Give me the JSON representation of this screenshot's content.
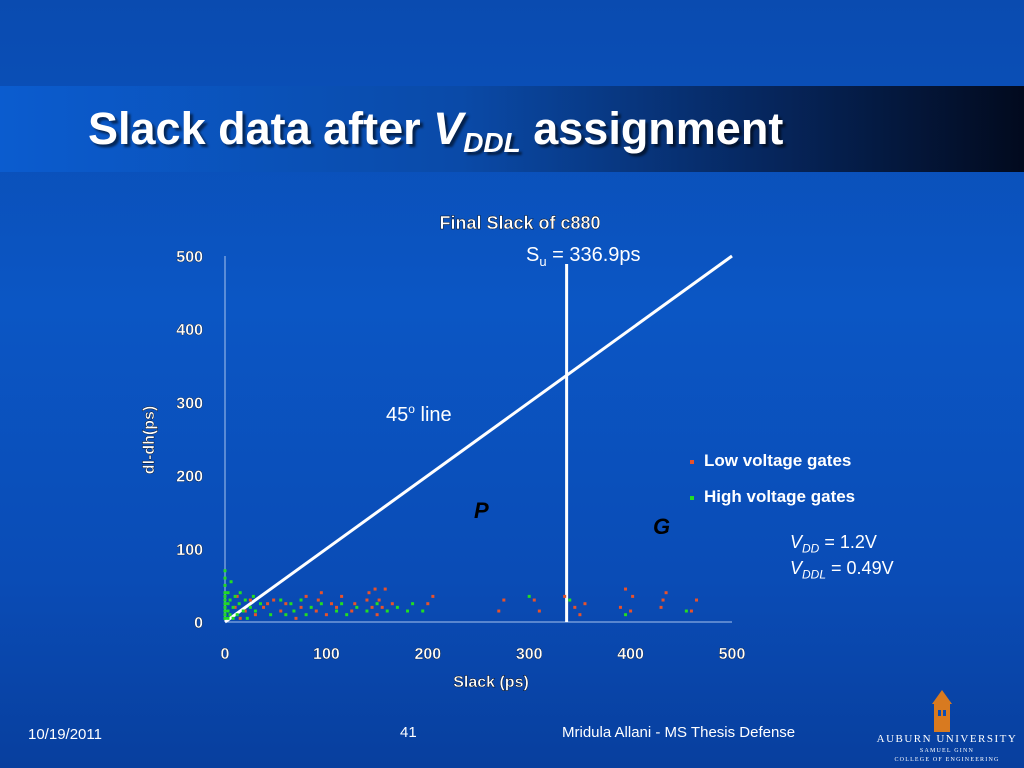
{
  "slide": {
    "title_prefix": "Slack data after ",
    "title_v": "V",
    "title_sub": "DDL",
    "title_suffix": " assignment"
  },
  "footer": {
    "date": "10/19/2011",
    "page": "41",
    "author": "Mridula Allani - MS Thesis Defense"
  },
  "logo": {
    "line1": "AUBURN UNIVERSITY",
    "line2": "SAMUEL GINN",
    "line3": "COLLEGE OF ENGINEERING"
  },
  "colors": {
    "low_voltage": "#e8522a",
    "high_voltage": "#22dd22",
    "line": "#ffffff"
  },
  "annotations": {
    "su_label": "S",
    "su_sub": "u",
    "su_value": " = 336.9ps",
    "line45": "45",
    "line45_sup": "o",
    "line45_suffix": " line",
    "region_p": "P",
    "region_g": "G",
    "vdd_v": "V",
    "vdd_sub": "DD",
    "vdd_value": " = 1.2V",
    "vddl_v": "V",
    "vddl_sub": "DDL",
    "vddl_value": " = 0.49V"
  },
  "chart_data": {
    "type": "scatter",
    "title": "Final Slack of c880",
    "xlabel": "Slack (ps)",
    "ylabel": "dl-dh(ps)",
    "xlim": [
      0,
      500
    ],
    "ylim": [
      0,
      500
    ],
    "xticks": [
      0,
      100,
      200,
      300,
      400,
      500
    ],
    "yticks": [
      0,
      100,
      200,
      300,
      400,
      500
    ],
    "grid": false,
    "legend_position": "right",
    "reference_lines": [
      {
        "type": "diagonal",
        "from": [
          0,
          0
        ],
        "to": [
          500,
          500
        ]
      },
      {
        "type": "vertical",
        "x": 336.9
      }
    ],
    "series": [
      {
        "name": "Low voltage gates",
        "points": [
          [
            10,
            20
          ],
          [
            12,
            35
          ],
          [
            15,
            5
          ],
          [
            20,
            15
          ],
          [
            25,
            30
          ],
          [
            30,
            10
          ],
          [
            38,
            20
          ],
          [
            42,
            25
          ],
          [
            48,
            30
          ],
          [
            55,
            15
          ],
          [
            60,
            25
          ],
          [
            70,
            5
          ],
          [
            75,
            20
          ],
          [
            80,
            35
          ],
          [
            90,
            15
          ],
          [
            92,
            30
          ],
          [
            95,
            40
          ],
          [
            100,
            10
          ],
          [
            105,
            25
          ],
          [
            110,
            20
          ],
          [
            115,
            35
          ],
          [
            125,
            15
          ],
          [
            128,
            25
          ],
          [
            140,
            30
          ],
          [
            142,
            40
          ],
          [
            145,
            20
          ],
          [
            148,
            45
          ],
          [
            150,
            10
          ],
          [
            152,
            30
          ],
          [
            155,
            20
          ],
          [
            158,
            45
          ],
          [
            165,
            25
          ],
          [
            200,
            25
          ],
          [
            205,
            35
          ],
          [
            270,
            15
          ],
          [
            275,
            30
          ],
          [
            305,
            30
          ],
          [
            310,
            15
          ],
          [
            335,
            35
          ],
          [
            345,
            20
          ],
          [
            350,
            10
          ],
          [
            355,
            25
          ],
          [
            390,
            20
          ],
          [
            395,
            45
          ],
          [
            400,
            15
          ],
          [
            402,
            35
          ],
          [
            430,
            20
          ],
          [
            432,
            30
          ],
          [
            435,
            40
          ],
          [
            460,
            15
          ],
          [
            465,
            30
          ]
        ]
      },
      {
        "name": "High voltage gates",
        "points": [
          [
            0,
            5
          ],
          [
            0,
            10
          ],
          [
            0,
            15
          ],
          [
            0,
            20
          ],
          [
            0,
            25
          ],
          [
            0,
            30
          ],
          [
            0,
            35
          ],
          [
            0,
            40
          ],
          [
            0,
            50
          ],
          [
            0,
            60
          ],
          [
            0,
            70
          ],
          [
            3,
            5
          ],
          [
            3,
            15
          ],
          [
            3,
            25
          ],
          [
            3,
            40
          ],
          [
            5,
            10
          ],
          [
            5,
            30
          ],
          [
            6,
            55
          ],
          [
            8,
            5
          ],
          [
            8,
            20
          ],
          [
            10,
            35
          ],
          [
            12,
            10
          ],
          [
            14,
            25
          ],
          [
            15,
            40
          ],
          [
            18,
            15
          ],
          [
            20,
            30
          ],
          [
            22,
            5
          ],
          [
            25,
            20
          ],
          [
            28,
            35
          ],
          [
            30,
            15
          ],
          [
            35,
            25
          ],
          [
            45,
            10
          ],
          [
            55,
            30
          ],
          [
            60,
            10
          ],
          [
            65,
            25
          ],
          [
            68,
            15
          ],
          [
            75,
            30
          ],
          [
            80,
            10
          ],
          [
            85,
            20
          ],
          [
            95,
            25
          ],
          [
            110,
            15
          ],
          [
            115,
            25
          ],
          [
            120,
            10
          ],
          [
            130,
            20
          ],
          [
            140,
            15
          ],
          [
            150,
            25
          ],
          [
            160,
            15
          ],
          [
            170,
            20
          ],
          [
            180,
            15
          ],
          [
            185,
            25
          ],
          [
            195,
            15
          ],
          [
            300,
            35
          ],
          [
            340,
            30
          ],
          [
            395,
            10
          ],
          [
            455,
            15
          ]
        ]
      }
    ]
  }
}
